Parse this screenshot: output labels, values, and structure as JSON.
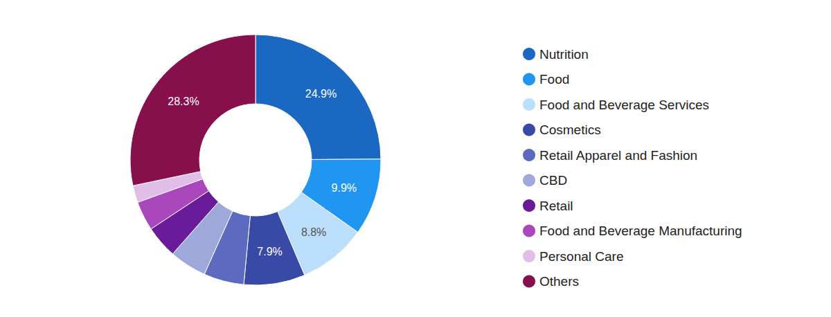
{
  "chart_data": {
    "type": "pie",
    "categories": [
      "Nutrition",
      "Food",
      "Food and Beverage Services",
      "Cosmetics",
      "Retail Apparel and Fashion",
      "CBD",
      "Retail",
      "Food and Beverage Manufacturing",
      "Personal Care",
      "Others"
    ],
    "values": [
      24.9,
      9.9,
      8.8,
      7.9,
      5.2,
      4.8,
      4.2,
      3.8,
      2.2,
      28.3
    ],
    "value_labels": [
      "24.9%",
      "9.9%",
      "8.8%",
      "7.9%",
      null,
      null,
      null,
      null,
      null,
      "28.3%"
    ],
    "colors": [
      "#1a68c2",
      "#2196f0",
      "#bbdefb",
      "#3949a6",
      "#5c6bc0",
      "#9fa8da",
      "#6a1b9a",
      "#ab47bc",
      "#e1bee7",
      "#870f4c"
    ],
    "data_labels": true,
    "legend": "right"
  }
}
